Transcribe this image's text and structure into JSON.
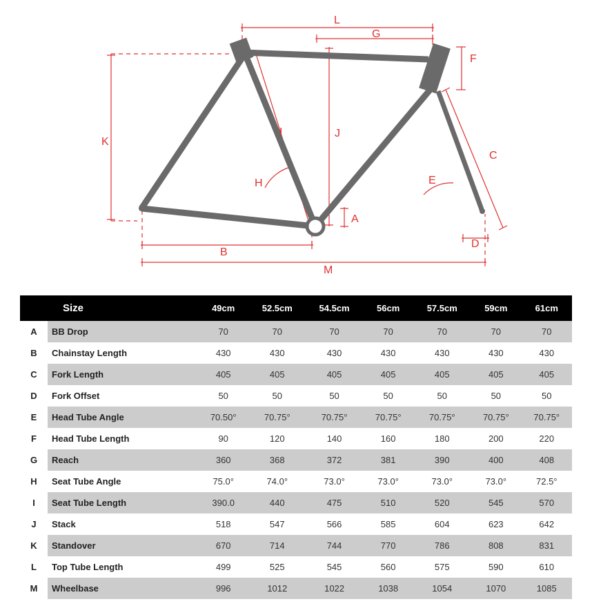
{
  "diagram": {
    "frame_color": "#6a6a6a",
    "dim_line_color": "#e03030",
    "dim_text_color": "#e03030",
    "background": "#ffffff",
    "stroke_width_frame": 9,
    "stroke_width_dim": 1.2,
    "font_size_label": 16,
    "labels": [
      "A",
      "B",
      "C",
      "D",
      "E",
      "F",
      "G",
      "H",
      "I",
      "J",
      "K",
      "L",
      "M"
    ]
  },
  "table": {
    "header_bg": "#000000",
    "header_fg": "#ffffff",
    "odd_row_bg": "#cccccc",
    "even_row_bg": "#ffffff",
    "size_label": "Size",
    "columns": [
      "49cm",
      "52.5cm",
      "54.5cm",
      "56cm",
      "57.5cm",
      "59cm",
      "61cm"
    ],
    "rows": [
      {
        "letter": "A",
        "param": "BB Drop",
        "values": [
          "70",
          "70",
          "70",
          "70",
          "70",
          "70",
          "70"
        ]
      },
      {
        "letter": "B",
        "param": "Chainstay Length",
        "values": [
          "430",
          "430",
          "430",
          "430",
          "430",
          "430",
          "430"
        ]
      },
      {
        "letter": "C",
        "param": "Fork Length",
        "values": [
          "405",
          "405",
          "405",
          "405",
          "405",
          "405",
          "405"
        ]
      },
      {
        "letter": "D",
        "param": "Fork Offset",
        "values": [
          "50",
          "50",
          "50",
          "50",
          "50",
          "50",
          "50"
        ]
      },
      {
        "letter": "E",
        "param": "Head Tube Angle",
        "values": [
          "70.50°",
          "70.75°",
          "70.75°",
          "70.75°",
          "70.75°",
          "70.75°",
          "70.75°"
        ]
      },
      {
        "letter": "F",
        "param": "Head Tube Length",
        "values": [
          "90",
          "120",
          "140",
          "160",
          "180",
          "200",
          "220"
        ]
      },
      {
        "letter": "G",
        "param": "Reach",
        "values": [
          "360",
          "368",
          "372",
          "381",
          "390",
          "400",
          "408"
        ]
      },
      {
        "letter": "H",
        "param": "Seat Tube Angle",
        "values": [
          "75.0°",
          "74.0°",
          "73.0°",
          "73.0°",
          "73.0°",
          "73.0°",
          "72.5°"
        ]
      },
      {
        "letter": "I",
        "param": "Seat Tube Length",
        "values": [
          "390.0",
          "440",
          "475",
          "510",
          "520",
          "545",
          "570"
        ]
      },
      {
        "letter": "J",
        "param": "Stack",
        "values": [
          "518",
          "547",
          "566",
          "585",
          "604",
          "623",
          "642"
        ]
      },
      {
        "letter": "K",
        "param": "Standover",
        "values": [
          "670",
          "714",
          "744",
          "770",
          "786",
          "808",
          "831"
        ]
      },
      {
        "letter": "L",
        "param": "Top Tube Length",
        "values": [
          "499",
          "525",
          "545",
          "560",
          "575",
          "590",
          "610"
        ]
      },
      {
        "letter": "M",
        "param": "Wheelbase",
        "values": [
          "996",
          "1012",
          "1022",
          "1038",
          "1054",
          "1070",
          "1085"
        ]
      }
    ]
  }
}
